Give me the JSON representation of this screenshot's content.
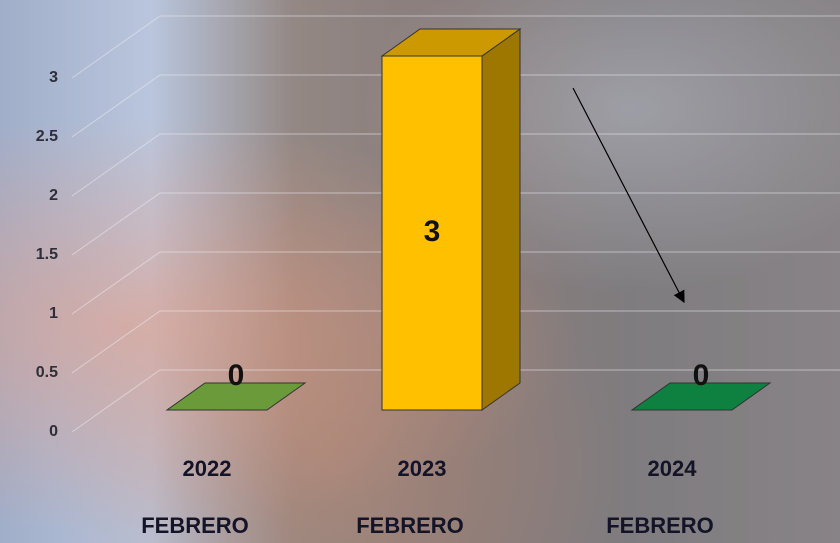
{
  "chart_data": {
    "type": "bar3d",
    "categories": [
      "2022",
      "2023",
      "2024"
    ],
    "category_sublabels": [
      "FEBRERO",
      "FEBRERO",
      "FEBRERO"
    ],
    "values": [
      0,
      3,
      0
    ],
    "colors": [
      "#6b9a3a",
      "#ffc000",
      "#0e8040"
    ],
    "ylim": [
      0,
      3
    ],
    "yticks": [
      0,
      0.5,
      1,
      1.5,
      2,
      2.5,
      3
    ],
    "grid": true
  }
}
